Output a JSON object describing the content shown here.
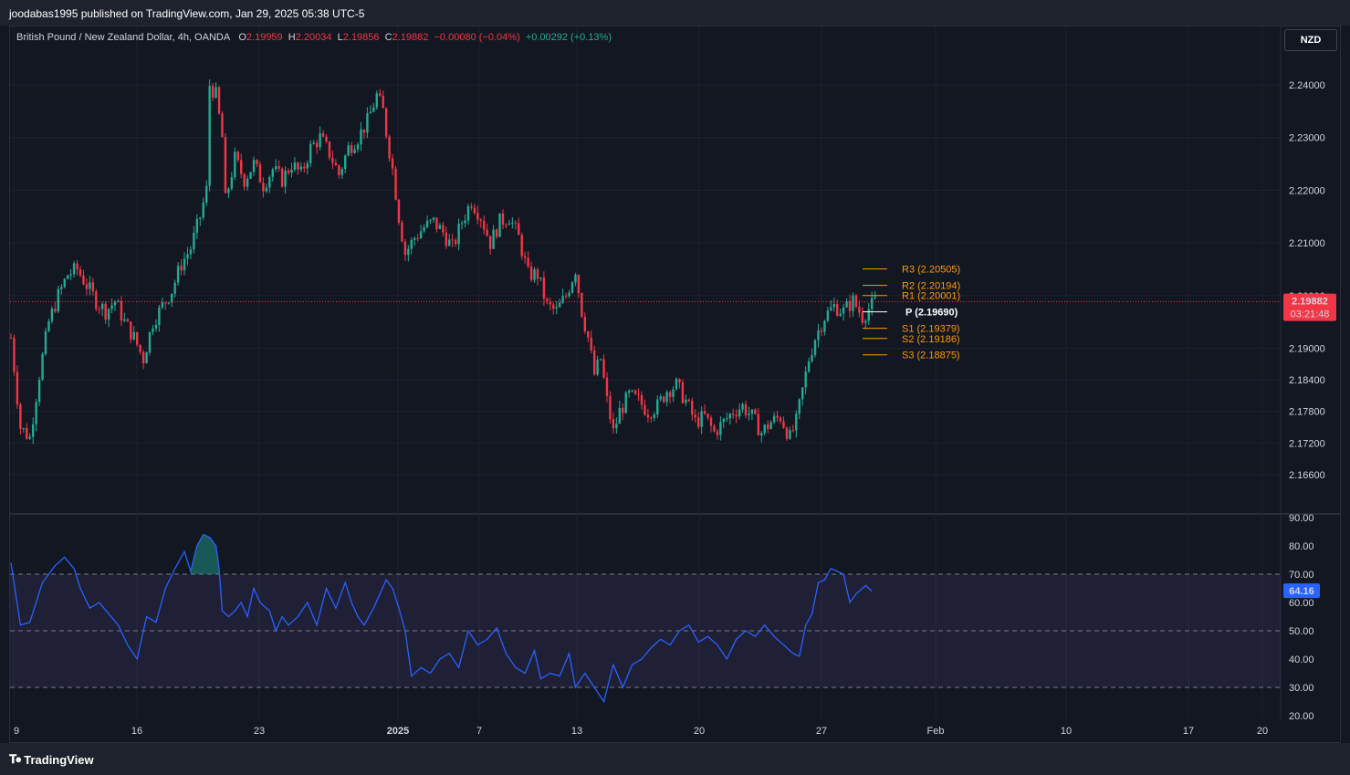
{
  "header": {
    "published_text": "joodabas1995 published on TradingView.com, Jan 29, 2025 05:38 UTC-5"
  },
  "legend": {
    "symbol": "British Pound / New Zealand Dollar, 4h, OANDA",
    "o_label": "O",
    "o_value": "2.19959",
    "h_label": "H",
    "h_value": "2.20034",
    "l_label": "L",
    "l_value": "2.19856",
    "c_label": "C",
    "c_value": "2.19882",
    "change": "−0.00080 (−0.04%)",
    "change2": "+0.00292 (+0.13%)"
  },
  "currency_button": "NZD",
  "footer": {
    "brand": "TradingView"
  },
  "colors": {
    "up": "#22ab94",
    "down": "#f23645",
    "pivot": "#ff9800",
    "rsi_line": "#2962ff",
    "rsi_band": "#7e57c2",
    "price_tag": "#f23645",
    "rsi_tag": "#2962ff"
  },
  "chart_data": [
    {
      "type": "candlestick",
      "title": "British Pound / New Zealand Dollar, 4h, OANDA",
      "x_ticks": [
        "9",
        "16",
        "23",
        "2025",
        "7",
        "13",
        "20",
        "27",
        "Feb",
        "10",
        "17",
        "20"
      ],
      "y_ticks": [
        "2.24000",
        "2.23000",
        "2.22000",
        "2.21000",
        "2.20000",
        "2.19000",
        "2.18400",
        "2.17800",
        "2.17200",
        "2.16600"
      ],
      "y_range": [
        2.1635,
        2.2455
      ],
      "last_price": "2.19882",
      "countdown": "03:21:48",
      "close_path": [
        [
          0,
          2.192
        ],
        [
          3,
          2.175
        ],
        [
          6,
          2.173
        ],
        [
          9,
          2.185
        ],
        [
          12,
          2.195
        ],
        [
          15,
          2.2
        ],
        [
          18,
          2.204
        ],
        [
          21,
          2.205
        ],
        [
          24,
          2.202
        ],
        [
          27,
          2.199
        ],
        [
          30,
          2.197
        ],
        [
          33,
          2.199
        ],
        [
          36,
          2.195
        ],
        [
          39,
          2.192
        ],
        [
          42,
          2.188
        ],
        [
          45,
          2.195
        ],
        [
          48,
          2.198
        ],
        [
          51,
          2.201
        ],
        [
          54,
          2.206
        ],
        [
          57,
          2.209
        ],
        [
          60,
          2.215
        ],
        [
          62,
          2.22
        ],
        [
          63,
          2.24
        ],
        [
          65,
          2.238
        ],
        [
          67,
          2.23
        ],
        [
          68,
          2.218
        ],
        [
          71,
          2.226
        ],
        [
          74,
          2.222
        ],
        [
          77,
          2.225
        ],
        [
          80,
          2.221
        ],
        [
          83,
          2.224
        ],
        [
          86,
          2.222
        ],
        [
          89,
          2.225
        ],
        [
          92,
          2.223
        ],
        [
          95,
          2.228
        ],
        [
          98,
          2.23
        ],
        [
          101,
          2.227
        ],
        [
          104,
          2.223
        ],
        [
          107,
          2.228
        ],
        [
          110,
          2.23
        ],
        [
          113,
          2.233
        ],
        [
          116,
          2.238
        ],
        [
          118,
          2.235
        ],
        [
          119,
          2.231
        ],
        [
          121,
          2.224
        ],
        [
          123,
          2.215
        ],
        [
          125,
          2.208
        ],
        [
          128,
          2.211
        ],
        [
          131,
          2.213
        ],
        [
          134,
          2.214
        ],
        [
          137,
          2.212
        ],
        [
          140,
          2.209
        ],
        [
          143,
          2.214
        ],
        [
          146,
          2.218
        ],
        [
          149,
          2.215
        ],
        [
          152,
          2.21
        ],
        [
          155,
          2.214
        ],
        [
          158,
          2.215
        ],
        [
          161,
          2.211
        ],
        [
          164,
          2.204
        ],
        [
          167,
          2.204
        ],
        [
          170,
          2.198
        ],
        [
          173,
          2.197
        ],
        [
          176,
          2.2
        ],
        [
          179,
          2.205
        ],
        [
          181,
          2.197
        ],
        [
          183,
          2.192
        ],
        [
          185,
          2.185
        ],
        [
          187,
          2.188
        ],
        [
          189,
          2.18
        ],
        [
          191,
          2.174
        ],
        [
          193,
          2.178
        ],
        [
          196,
          2.181
        ],
        [
          199,
          2.18
        ],
        [
          202,
          2.178
        ],
        [
          205,
          2.179
        ],
        [
          208,
          2.182
        ],
        [
          211,
          2.183
        ],
        [
          214,
          2.18
        ],
        [
          217,
          2.176
        ],
        [
          220,
          2.177
        ],
        [
          223,
          2.174
        ],
        [
          226,
          2.176
        ],
        [
          229,
          2.178
        ],
        [
          232,
          2.179
        ],
        [
          235,
          2.177
        ],
        [
          238,
          2.174
        ],
        [
          241,
          2.176
        ],
        [
          244,
          2.177
        ],
        [
          247,
          2.173
        ],
        [
          249,
          2.176
        ],
        [
          251,
          2.182
        ],
        [
          253,
          2.188
        ],
        [
          255,
          2.192
        ],
        [
          258,
          2.196
        ],
        [
          261,
          2.198
        ],
        [
          264,
          2.197
        ],
        [
          267,
          2.199
        ],
        [
          270,
          2.196
        ],
        [
          272,
          2.1975
        ],
        [
          274,
          2.1988
        ]
      ],
      "pivots": [
        {
          "label": "R3",
          "value": "2.20505",
          "price": 2.20505
        },
        {
          "label": "R2",
          "value": "2.20194",
          "price": 2.20194
        },
        {
          "label": "R1",
          "value": "2.20001",
          "price": 2.20001
        },
        {
          "label": "P",
          "value": "2.19690",
          "price": 2.1969
        },
        {
          "label": "S1",
          "value": "2.19379",
          "price": 2.19379
        },
        {
          "label": "S2",
          "value": "2.19186",
          "price": 2.19186
        },
        {
          "label": "S3",
          "value": "2.18875",
          "price": 2.18875
        }
      ]
    },
    {
      "type": "line",
      "series": [
        {
          "name": "",
          "values_path": [
            [
              0,
              74
            ],
            [
              3,
              52
            ],
            [
              6,
              53
            ],
            [
              10,
              67
            ],
            [
              14,
              73
            ],
            [
              17,
              76
            ],
            [
              20,
              72
            ],
            [
              22,
              65
            ],
            [
              25,
              58
            ],
            [
              28,
              60
            ],
            [
              31,
              56
            ],
            [
              34,
              52
            ],
            [
              37,
              45
            ],
            [
              40,
              40
            ],
            [
              43,
              55
            ],
            [
              46,
              53
            ],
            [
              49,
              65
            ],
            [
              52,
              72
            ],
            [
              55,
              78
            ],
            [
              57,
              71
            ],
            [
              59,
              80
            ],
            [
              61,
              84
            ],
            [
              63,
              83
            ],
            [
              65,
              80
            ],
            [
              66,
              72
            ],
            [
              67,
              57
            ],
            [
              69,
              55
            ],
            [
              71,
              57
            ],
            [
              73,
              60
            ],
            [
              75,
              55
            ],
            [
              77,
              65
            ],
            [
              79,
              60
            ],
            [
              82,
              57
            ],
            [
              84,
              50
            ],
            [
              86,
              55
            ],
            [
              88,
              52
            ],
            [
              91,
              55
            ],
            [
              94,
              60
            ],
            [
              97,
              52
            ],
            [
              100,
              65
            ],
            [
              103,
              58
            ],
            [
              106,
              67
            ],
            [
              108,
              60
            ],
            [
              110,
              55
            ],
            [
              112,
              52
            ],
            [
              115,
              58
            ],
            [
              117,
              63
            ],
            [
              119,
              68
            ],
            [
              121,
              65
            ],
            [
              123,
              58
            ],
            [
              125,
              50
            ],
            [
              127,
              34
            ],
            [
              130,
              37
            ],
            [
              133,
              35
            ],
            [
              136,
              40
            ],
            [
              139,
              42
            ],
            [
              142,
              37
            ],
            [
              145,
              50
            ],
            [
              148,
              45
            ],
            [
              151,
              47
            ],
            [
              154,
              51
            ],
            [
              157,
              42
            ],
            [
              160,
              37
            ],
            [
              163,
              35
            ],
            [
              166,
              43
            ],
            [
              168,
              33
            ],
            [
              171,
              35
            ],
            [
              174,
              34
            ],
            [
              177,
              42
            ],
            [
              179,
              30
            ],
            [
              182,
              35
            ],
            [
              185,
              30
            ],
            [
              188,
              25
            ],
            [
              191,
              38
            ],
            [
              194,
              30
            ],
            [
              197,
              38
            ],
            [
              200,
              40
            ],
            [
              203,
              44
            ],
            [
              206,
              47
            ],
            [
              209,
              45
            ],
            [
              212,
              50
            ],
            [
              215,
              52
            ],
            [
              218,
              46
            ],
            [
              221,
              48
            ],
            [
              224,
              45
            ],
            [
              227,
              40
            ],
            [
              230,
              47
            ],
            [
              233,
              50
            ],
            [
              236,
              48
            ],
            [
              239,
              52
            ],
            [
              242,
              48
            ],
            [
              245,
              45
            ],
            [
              248,
              42
            ],
            [
              250,
              41
            ],
            [
              252,
              52
            ],
            [
              254,
              56
            ],
            [
              256,
              67
            ],
            [
              258,
              68
            ],
            [
              260,
              72
            ],
            [
              262,
              71
            ],
            [
              264,
              70
            ],
            [
              266,
              60
            ],
            [
              268,
              63
            ],
            [
              271,
              66
            ],
            [
              273,
              64
            ]
          ]
        }
      ],
      "y_ticks": [
        "90.00",
        "80.00",
        "70.00",
        "60.00",
        "50.00",
        "40.00",
        "30.00",
        "20.00"
      ],
      "y_range": [
        20,
        90
      ],
      "levels": [
        70,
        50,
        30
      ],
      "last_value": "64.16"
    }
  ]
}
